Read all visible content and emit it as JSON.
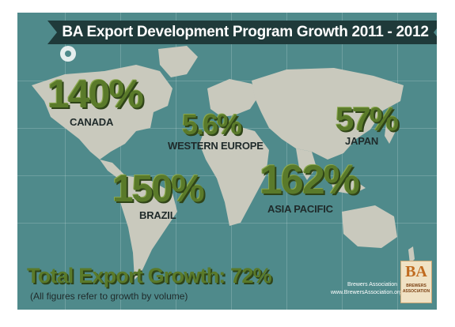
{
  "title": "BA Export Development Program Growth 2011 - 2012",
  "regions": [
    {
      "value": "140%",
      "label": "CANADA"
    },
    {
      "value": "5.6%",
      "label": "WESTERN EUROPE"
    },
    {
      "value": "57%",
      "label": "JAPAN"
    },
    {
      "value": "150%",
      "label": "BRAZIL"
    },
    {
      "value": "162%",
      "label": "ASIA PACIFIC"
    }
  ],
  "total": "Total Export Growth: 72%",
  "note": "(All figures refer to growth by volume)",
  "footer": {
    "org": "Brewers Association",
    "url": "www.BrewersAssociation.org"
  },
  "logo": {
    "mark": "BA",
    "text": "BREWERS ASSOCIATION"
  },
  "colors": {
    "background": "#4f8a8b",
    "banner": "#1f3a3a",
    "figures": "#5a7a2a",
    "land": "#c9c9bd"
  }
}
